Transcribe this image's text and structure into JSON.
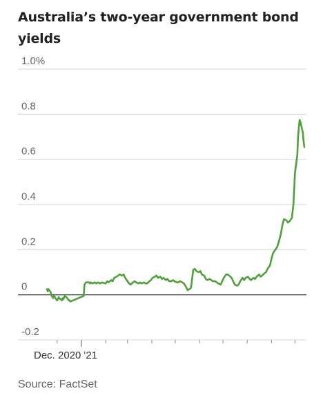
{
  "chart_data": {
    "type": "line",
    "title": "Australia’s two-year government bond yields",
    "source": "Source: FactSet",
    "xlabel": "",
    "ylabel": "",
    "x_tick_labels": [
      "Dec. 2020",
      "’21"
    ],
    "y_ticks": [
      {
        "value": -0.2,
        "label": "-0.2"
      },
      {
        "value": 0,
        "label": "0"
      },
      {
        "value": 0.2,
        "label": "0.2"
      },
      {
        "value": 0.4,
        "label": "0.4"
      },
      {
        "value": 0.6,
        "label": "0.6"
      },
      {
        "value": 0.8,
        "label": "0.8"
      },
      {
        "value": 1.0,
        "label": "1.0%"
      }
    ],
    "ylim": [
      -0.2,
      1.0
    ],
    "grid": true,
    "line_color": "#4f9f3a",
    "series": [
      {
        "name": "",
        "points": [
          [
            "2020-11-18",
            0.025
          ],
          [
            "2020-11-19",
            0.015
          ],
          [
            "2020-11-20",
            0.025
          ],
          [
            "2020-11-23",
            0.01
          ],
          [
            "2020-11-24",
            -0.005
          ],
          [
            "2020-11-25",
            -0.01
          ],
          [
            "2020-11-26",
            -0.015
          ],
          [
            "2020-11-27",
            -0.005
          ],
          [
            "2020-11-30",
            -0.02
          ],
          [
            "2020-12-01",
            -0.025
          ],
          [
            "2020-12-02",
            -0.02
          ],
          [
            "2020-12-03",
            -0.01
          ],
          [
            "2020-12-04",
            -0.015
          ],
          [
            "2020-12-07",
            -0.025
          ],
          [
            "2020-12-08",
            -0.015
          ],
          [
            "2020-12-09",
            -0.02
          ],
          [
            "2020-12-10",
            -0.01
          ],
          [
            "2020-12-11",
            -0.005
          ],
          [
            "2020-12-14",
            -0.015
          ],
          [
            "2020-12-15",
            -0.02
          ],
          [
            "2020-12-16",
            -0.025
          ],
          [
            "2020-12-17",
            -0.025
          ],
          [
            "2020-12-18",
            -0.03
          ],
          [
            "2021-01-04",
            -0.005
          ],
          [
            "2021-01-05",
            0.045
          ],
          [
            "2021-01-06",
            0.05
          ],
          [
            "2021-01-07",
            0.055
          ],
          [
            "2021-01-08",
            0.055
          ],
          [
            "2021-01-11",
            0.055
          ],
          [
            "2021-01-12",
            0.05
          ],
          [
            "2021-01-13",
            0.055
          ],
          [
            "2021-01-15",
            0.05
          ],
          [
            "2021-01-18",
            0.055
          ],
          [
            "2021-01-20",
            0.05
          ],
          [
            "2021-01-22",
            0.055
          ],
          [
            "2021-01-25",
            0.05
          ],
          [
            "2021-01-27",
            0.055
          ],
          [
            "2021-02-01",
            0.05
          ],
          [
            "2021-02-03",
            0.06
          ],
          [
            "2021-02-05",
            0.055
          ],
          [
            "2021-02-08",
            0.065
          ],
          [
            "2021-02-10",
            0.06
          ],
          [
            "2021-02-12",
            0.075
          ],
          [
            "2021-02-15",
            0.08
          ],
          [
            "2021-02-17",
            0.085
          ],
          [
            "2021-02-19",
            0.09
          ],
          [
            "2021-02-22",
            0.085
          ],
          [
            "2021-02-24",
            0.09
          ],
          [
            "2021-02-26",
            0.075
          ],
          [
            "2021-03-01",
            0.06
          ],
          [
            "2021-03-03",
            0.05
          ],
          [
            "2021-03-05",
            0.045
          ],
          [
            "2021-03-08",
            0.055
          ],
          [
            "2021-03-10",
            0.06
          ],
          [
            "2021-03-12",
            0.055
          ],
          [
            "2021-03-15",
            0.05
          ],
          [
            "2021-03-17",
            0.055
          ],
          [
            "2021-03-19",
            0.05
          ],
          [
            "2021-03-22",
            0.055
          ],
          [
            "2021-03-24",
            0.05
          ],
          [
            "2021-03-26",
            0.05
          ],
          [
            "2021-03-29",
            0.06
          ],
          [
            "2021-03-31",
            0.065
          ],
          [
            "2021-04-02",
            0.075
          ],
          [
            "2021-04-05",
            0.08
          ],
          [
            "2021-04-07",
            0.085
          ],
          [
            "2021-04-09",
            0.075
          ],
          [
            "2021-04-12",
            0.08
          ],
          [
            "2021-04-14",
            0.07
          ],
          [
            "2021-04-16",
            0.075
          ],
          [
            "2021-04-19",
            0.065
          ],
          [
            "2021-04-21",
            0.07
          ],
          [
            "2021-04-23",
            0.06
          ],
          [
            "2021-04-26",
            0.06
          ],
          [
            "2021-04-28",
            0.065
          ],
          [
            "2021-04-30",
            0.06
          ],
          [
            "2021-05-03",
            0.055
          ],
          [
            "2021-05-05",
            0.055
          ],
          [
            "2021-05-07",
            0.06
          ],
          [
            "2021-05-10",
            0.055
          ],
          [
            "2021-05-12",
            0.05
          ],
          [
            "2021-05-14",
            0.04
          ],
          [
            "2021-05-17",
            0.02
          ],
          [
            "2021-05-19",
            0.025
          ],
          [
            "2021-05-21",
            0.03
          ],
          [
            "2021-05-24",
            0.11
          ],
          [
            "2021-05-26",
            0.115
          ],
          [
            "2021-05-28",
            0.105
          ],
          [
            "2021-05-31",
            0.1
          ],
          [
            "2021-06-02",
            0.105
          ],
          [
            "2021-06-04",
            0.09
          ],
          [
            "2021-06-07",
            0.085
          ],
          [
            "2021-06-09",
            0.07
          ],
          [
            "2021-06-11",
            0.065
          ],
          [
            "2021-06-14",
            0.07
          ],
          [
            "2021-06-16",
            0.065
          ],
          [
            "2021-06-18",
            0.06
          ],
          [
            "2021-06-21",
            0.06
          ],
          [
            "2021-06-23",
            0.055
          ],
          [
            "2021-06-25",
            0.05
          ],
          [
            "2021-06-28",
            0.045
          ],
          [
            "2021-06-30",
            0.06
          ],
          [
            "2021-07-02",
            0.075
          ],
          [
            "2021-07-05",
            0.09
          ],
          [
            "2021-07-07",
            0.09
          ],
          [
            "2021-07-09",
            0.085
          ],
          [
            "2021-07-12",
            0.075
          ],
          [
            "2021-07-14",
            0.06
          ],
          [
            "2021-07-16",
            0.045
          ],
          [
            "2021-07-19",
            0.04
          ],
          [
            "2021-07-21",
            0.045
          ],
          [
            "2021-07-23",
            0.06
          ],
          [
            "2021-07-26",
            0.075
          ],
          [
            "2021-07-28",
            0.065
          ],
          [
            "2021-07-30",
            0.075
          ],
          [
            "2021-08-02",
            0.08
          ],
          [
            "2021-08-04",
            0.07
          ],
          [
            "2021-08-06",
            0.065
          ],
          [
            "2021-08-09",
            0.075
          ],
          [
            "2021-08-11",
            0.07
          ],
          [
            "2021-08-13",
            0.08
          ],
          [
            "2021-08-16",
            0.09
          ],
          [
            "2021-08-18",
            0.08
          ],
          [
            "2021-08-20",
            0.085
          ],
          [
            "2021-08-23",
            0.095
          ],
          [
            "2021-08-25",
            0.1
          ],
          [
            "2021-08-27",
            0.115
          ],
          [
            "2021-08-30",
            0.13
          ],
          [
            "2021-09-01",
            0.16
          ],
          [
            "2021-09-03",
            0.185
          ],
          [
            "2021-09-06",
            0.2
          ],
          [
            "2021-09-08",
            0.21
          ],
          [
            "2021-09-10",
            0.23
          ],
          [
            "2021-09-13",
            0.27
          ],
          [
            "2021-09-15",
            0.31
          ],
          [
            "2021-09-17",
            0.335
          ],
          [
            "2021-09-20",
            0.33
          ],
          [
            "2021-09-22",
            0.32
          ],
          [
            "2021-09-24",
            0.325
          ],
          [
            "2021-09-27",
            0.34
          ],
          [
            "2021-09-29",
            0.4
          ],
          [
            "2021-10-01",
            0.54
          ],
          [
            "2021-10-04",
            0.62
          ],
          [
            "2021-10-05",
            0.7
          ],
          [
            "2021-10-06",
            0.745
          ],
          [
            "2021-10-07",
            0.775
          ],
          [
            "2021-10-08",
            0.765
          ],
          [
            "2021-10-11",
            0.72
          ],
          [
            "2021-10-12",
            0.68
          ],
          [
            "2021-10-13",
            0.655
          ]
        ]
      }
    ]
  }
}
